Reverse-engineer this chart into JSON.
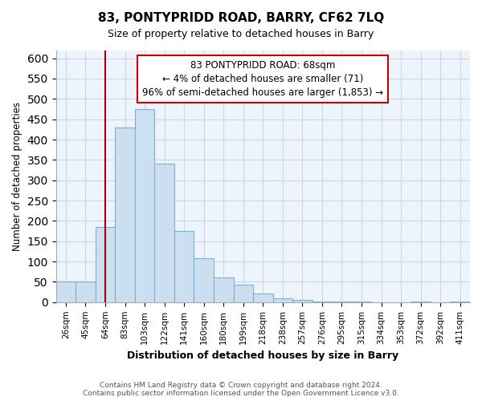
{
  "title": "83, PONTYPRIDD ROAD, BARRY, CF62 7LQ",
  "subtitle": "Size of property relative to detached houses in Barry",
  "xlabel": "Distribution of detached houses by size in Barry",
  "ylabel": "Number of detached properties",
  "bar_color": "#ccdff0",
  "bar_edge_color": "#7ab0d4",
  "categories": [
    "26sqm",
    "45sqm",
    "64sqm",
    "83sqm",
    "103sqm",
    "122sqm",
    "141sqm",
    "160sqm",
    "180sqm",
    "199sqm",
    "218sqm",
    "238sqm",
    "257sqm",
    "276sqm",
    "295sqm",
    "315sqm",
    "334sqm",
    "353sqm",
    "372sqm",
    "392sqm",
    "411sqm"
  ],
  "values": [
    50,
    50,
    185,
    430,
    475,
    340,
    175,
    108,
    60,
    44,
    22,
    10,
    5,
    2,
    2,
    1,
    0,
    0,
    2,
    0,
    2
  ],
  "ylim": [
    0,
    620
  ],
  "yticks": [
    0,
    50,
    100,
    150,
    200,
    250,
    300,
    350,
    400,
    450,
    500,
    550,
    600
  ],
  "vline_pos": 2.5,
  "vline_color": "#aa0000",
  "annotation_text": "83 PONTYPRIDD ROAD: 68sqm\n← 4% of detached houses are smaller (71)\n96% of semi-detached houses are larger (1,853) →",
  "annotation_box_color": "#ffffff",
  "annotation_box_edgecolor": "#cc0000",
  "footer_line1": "Contains HM Land Registry data © Crown copyright and database right 2024.",
  "footer_line2": "Contains public sector information licensed under the Open Government Licence v3.0.",
  "background_color": "#ffffff",
  "grid_color": "#c8d8e8",
  "plot_bg_color": "#eef4fb"
}
